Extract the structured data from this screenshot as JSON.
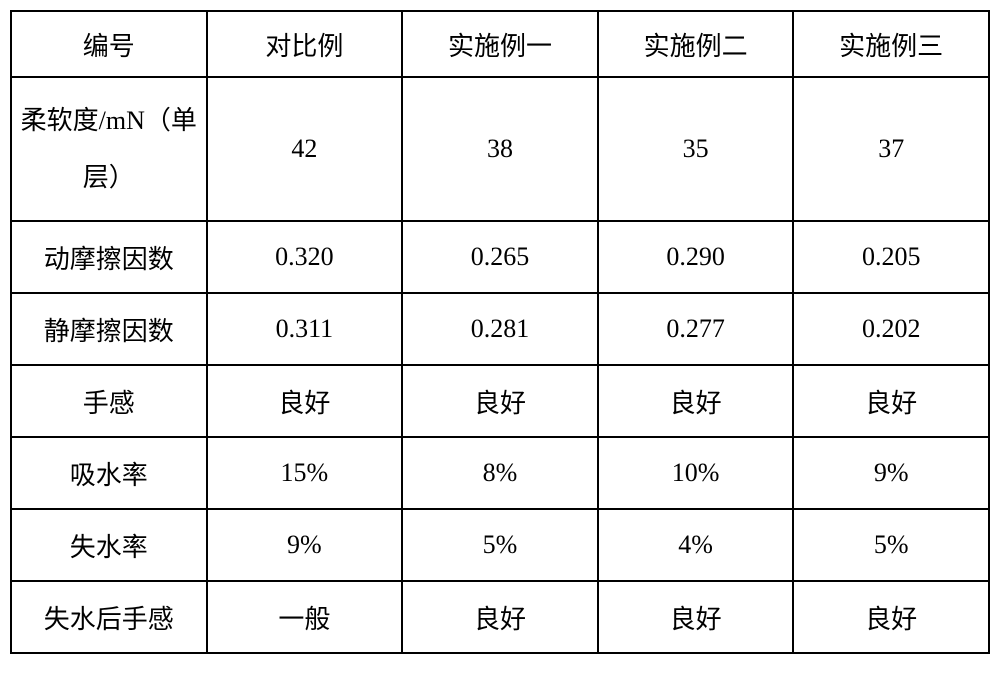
{
  "table": {
    "type": "table",
    "background_color": "#ffffff",
    "border_color": "#000000",
    "text_color": "#000000",
    "font_family": "SimSun",
    "font_size": 26,
    "columns": [
      "编号",
      "对比例",
      "实施例一",
      "实施例二",
      "实施例三"
    ],
    "rows": [
      {
        "label": "柔软度/mN（单层）",
        "values": [
          "42",
          "38",
          "35",
          "37"
        ],
        "tall": true
      },
      {
        "label": "动摩擦因数",
        "values": [
          "0.320",
          "0.265",
          "0.290",
          "0.205"
        ],
        "tall": false
      },
      {
        "label": "静摩擦因数",
        "values": [
          "0.311",
          "0.281",
          "0.277",
          "0.202"
        ],
        "tall": false
      },
      {
        "label": "手感",
        "values": [
          "良好",
          "良好",
          "良好",
          "良好"
        ],
        "tall": false
      },
      {
        "label": "吸水率",
        "values": [
          "15%",
          "8%",
          "10%",
          "9%"
        ],
        "tall": false
      },
      {
        "label": "失水率",
        "values": [
          "9%",
          "5%",
          "4%",
          "5%"
        ],
        "tall": false
      },
      {
        "label": "失水后手感",
        "values": [
          "一般",
          "良好",
          "良好",
          "良好"
        ],
        "tall": false
      }
    ],
    "column_widths": [
      "20%",
      "20%",
      "20%",
      "20%",
      "20%"
    ],
    "header_row_height": 66,
    "tall_row_height": 144,
    "normal_row_height": 72,
    "border_width": 2
  }
}
